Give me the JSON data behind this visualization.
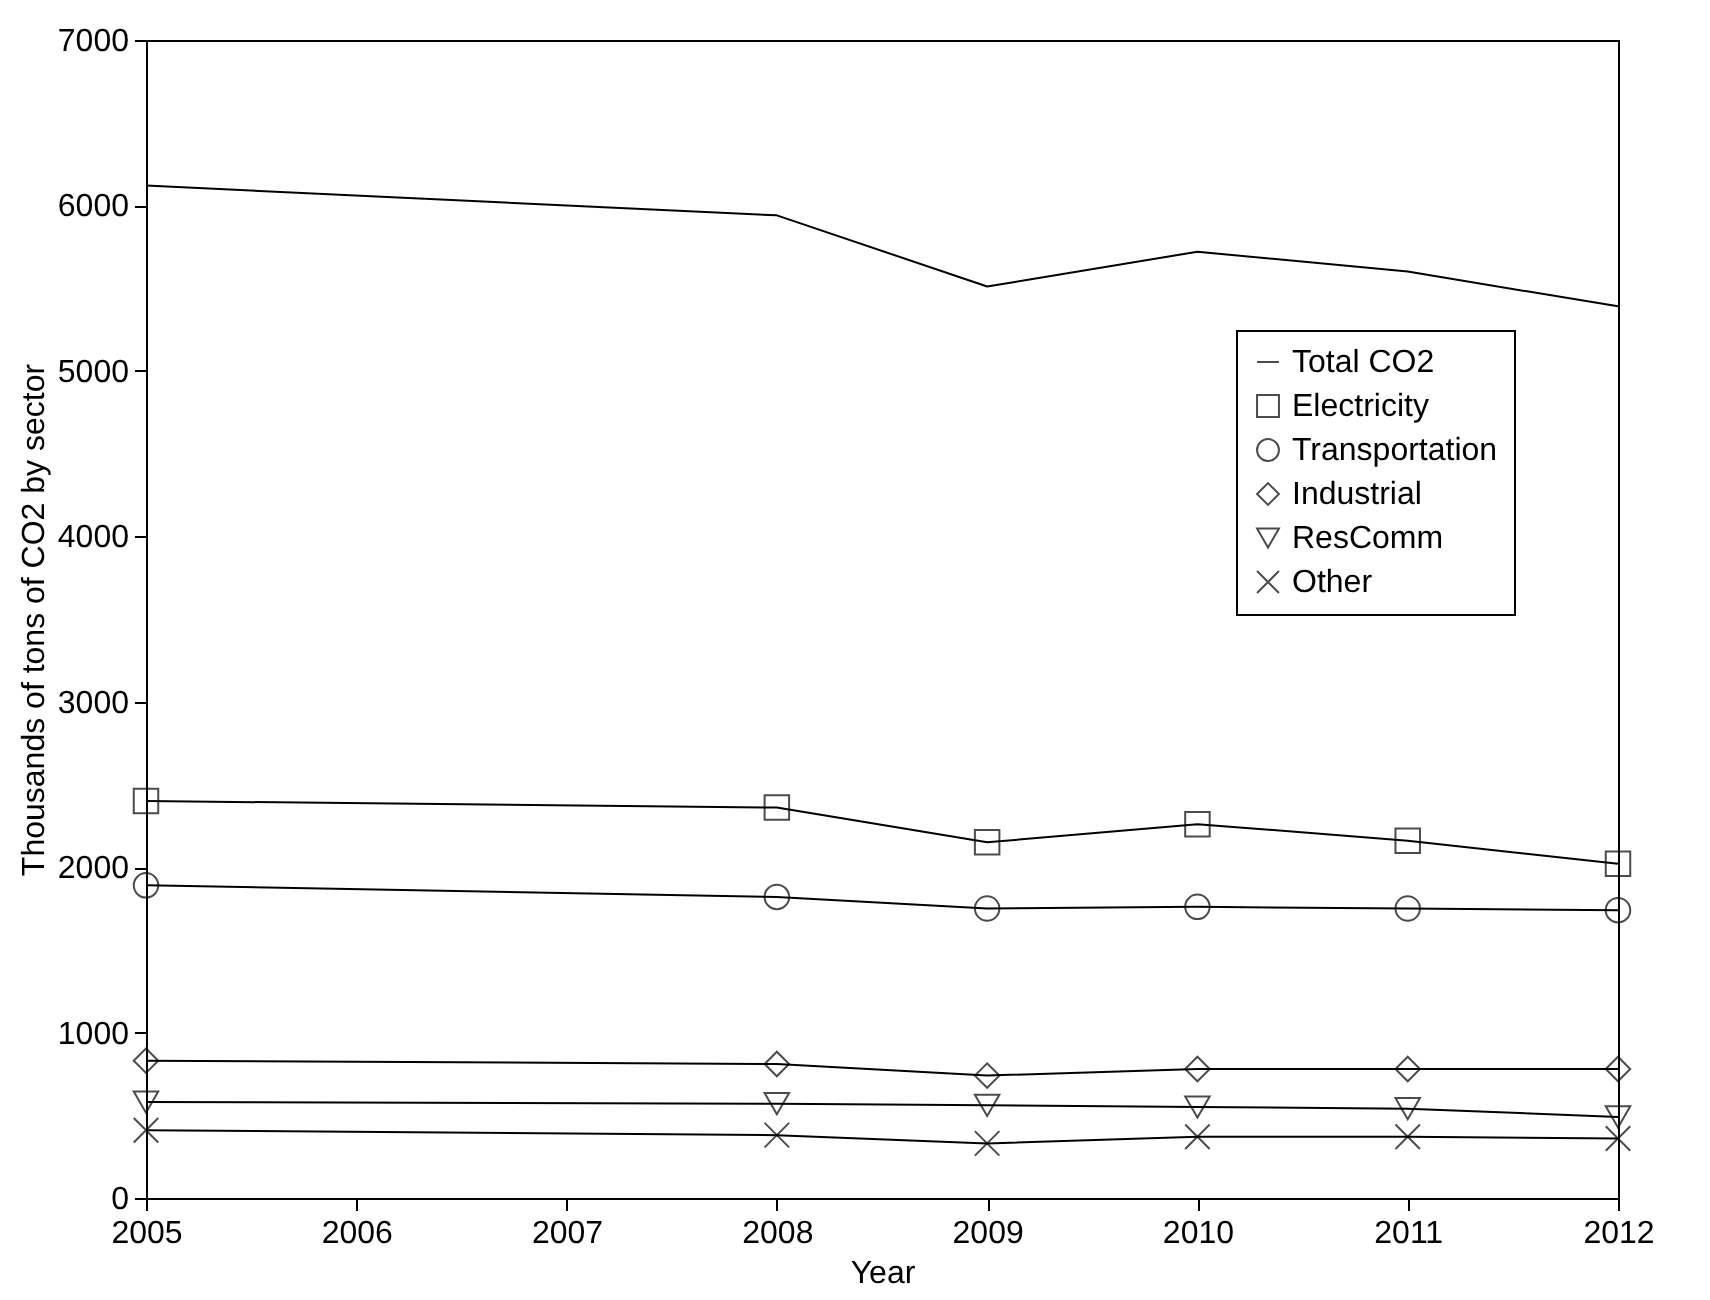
{
  "chart_data": {
    "type": "line",
    "xlabel": "Year",
    "ylabel": "Thousands of tons of CO2 by sector",
    "x": [
      2005,
      2008,
      2009,
      2010,
      2011,
      2012
    ],
    "xlim": [
      2005,
      2012
    ],
    "xticks": [
      2005,
      2006,
      2007,
      2008,
      2009,
      2010,
      2011,
      2012
    ],
    "ylim": [
      0,
      7000
    ],
    "yticks": [
      0,
      1000,
      2000,
      3000,
      4000,
      5000,
      6000,
      7000
    ],
    "grid": false,
    "legend": "right",
    "line_style": "solid",
    "series": [
      {
        "name": "Total CO2",
        "color": "#000000",
        "marker": "none",
        "values": [
          6120,
          5940,
          5510,
          5720,
          5600,
          5390
        ]
      },
      {
        "name": "Electricity",
        "color": "#000000",
        "marker": "square",
        "values": [
          2400,
          2360,
          2150,
          2260,
          2160,
          2020
        ]
      },
      {
        "name": "Transportation",
        "color": "#000000",
        "marker": "circle",
        "values": [
          1890,
          1820,
          1750,
          1760,
          1750,
          1740
        ]
      },
      {
        "name": "Industrial",
        "color": "#000000",
        "marker": "diamond",
        "values": [
          830,
          810,
          740,
          780,
          780,
          780
        ]
      },
      {
        "name": "ResComm",
        "color": "#000000",
        "marker": "triangle",
        "values": [
          580,
          570,
          560,
          550,
          540,
          490
        ]
      },
      {
        "name": "Other",
        "color": "#000000",
        "marker": "cross",
        "values": [
          410,
          380,
          330,
          370,
          370,
          360
        ]
      }
    ]
  }
}
